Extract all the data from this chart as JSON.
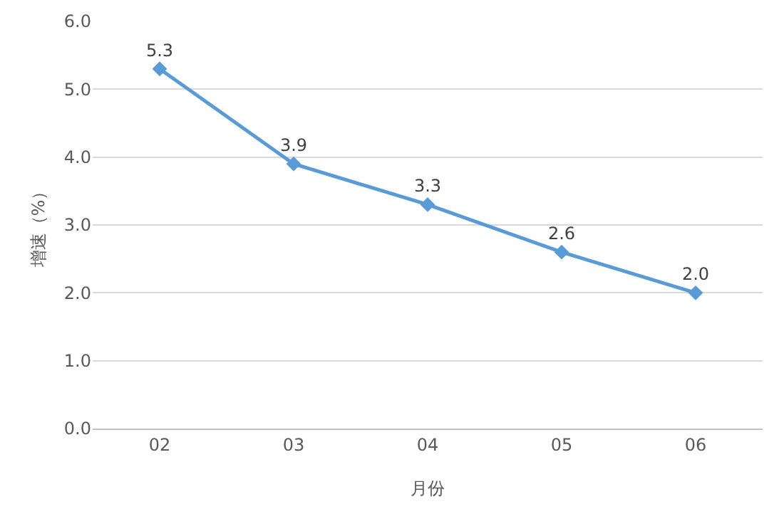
{
  "chart_data": {
    "type": "line",
    "xlabel": "月份",
    "ylabel": "增速（%）",
    "categories": [
      "02",
      "03",
      "04",
      "05",
      "06"
    ],
    "series": [
      {
        "color": "#5b9bd5",
        "values": [
          5.3,
          3.9,
          3.3,
          2.6,
          2.0
        ],
        "value_labels": [
          "5.3",
          "3.9",
          "3.3",
          "2.6",
          "2.0"
        ]
      }
    ],
    "ylim": [
      0,
      6
    ],
    "yticks": [
      {
        "value": 0,
        "label": "0.0"
      },
      {
        "value": 1,
        "label": "1.0"
      },
      {
        "value": 2,
        "label": "2.0"
      },
      {
        "value": 3,
        "label": "3.0"
      },
      {
        "value": 4,
        "label": "4.0"
      },
      {
        "value": 5,
        "label": "5.0"
      },
      {
        "value": 6,
        "label": "6.0"
      }
    ],
    "grid": "y",
    "marker": "diamond",
    "line_style": "solid"
  }
}
